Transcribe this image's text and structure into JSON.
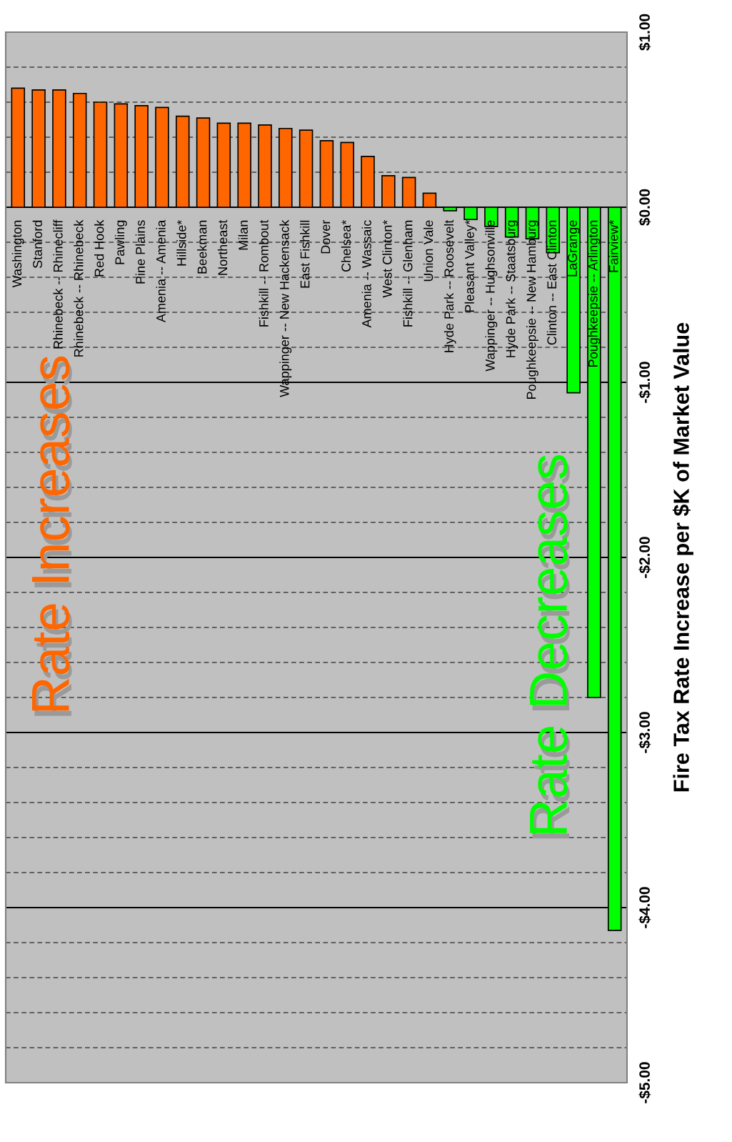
{
  "chart_data": {
    "type": "bar",
    "ylabel": "Fire Tax Rate Increase per $K of Market Value",
    "categories": [
      "Washington",
      "Stanford",
      "Rhinebeck -- Rhinecliff",
      "Rhinebeck -- Rhinebeck",
      "Red Hook",
      "Pawling",
      "Pine Plains",
      "Amenia -- Amenia",
      "Hillside*",
      "Beekman",
      "Northeast",
      "Milan",
      "Fishkill -- Rombout",
      "Wappinger -- New Hackensack",
      "East Fishkill",
      "Dover",
      "Chelsea*",
      "Amenia -- Wassaic",
      "West Clinton*",
      "Fishkill -- Glenham",
      "Union Vale",
      "Hyde Park -- Roosevelt",
      "Pleasant Valley*",
      "Wappinger -- Hughsonville",
      "Hyde Park -- Staatsburg",
      "Poughkeepsie -- New Hamburg",
      "Clinton -- East Clinton",
      "LaGrange",
      "Poughkeepsie -- Arlington",
      "Fairview*"
    ],
    "values": [
      0.68,
      0.67,
      0.67,
      0.65,
      0.6,
      0.59,
      0.58,
      0.57,
      0.52,
      0.51,
      0.48,
      0.48,
      0.47,
      0.45,
      0.44,
      0.38,
      0.37,
      0.29,
      0.18,
      0.17,
      0.08,
      -0.02,
      -0.07,
      -0.11,
      -0.17,
      -0.18,
      -0.26,
      -1.06,
      -2.8,
      -4.13
    ],
    "colors": [
      "#ff6600",
      "#ff6600",
      "#ff6600",
      "#ff6600",
      "#ff6600",
      "#ff6600",
      "#ff6600",
      "#ff6600",
      "#ff6600",
      "#ff6600",
      "#ff6600",
      "#ff6600",
      "#ff6600",
      "#ff6600",
      "#ff6600",
      "#ff6600",
      "#ff6600",
      "#ff6600",
      "#ff6600",
      "#ff6600",
      "#ff6600",
      "#00ff00",
      "#00ff00",
      "#00ff00",
      "#00ff00",
      "#00ff00",
      "#00ff00",
      "#00ff00",
      "#00ff00",
      "#00ff00"
    ],
    "ylim": [
      -5,
      1
    ],
    "yticks": [
      {
        "value": -5,
        "label": "-$5.00"
      },
      {
        "value": -4.8,
        "label": null
      },
      {
        "value": -4.6,
        "label": null
      },
      {
        "value": -4.4,
        "label": null
      },
      {
        "value": -4.2,
        "label": null
      },
      {
        "value": -4,
        "label": "-$4.00"
      },
      {
        "value": -3.8,
        "label": null
      },
      {
        "value": -3.6,
        "label": null
      },
      {
        "value": -3.4,
        "label": null
      },
      {
        "value": -3.2,
        "label": null
      },
      {
        "value": -3,
        "label": "-$3.00"
      },
      {
        "value": -2.8,
        "label": null
      },
      {
        "value": -2.6,
        "label": null
      },
      {
        "value": -2.4,
        "label": null
      },
      {
        "value": -2.2,
        "label": null
      },
      {
        "value": -2,
        "label": "-$2.00"
      },
      {
        "value": -1.8,
        "label": null
      },
      {
        "value": -1.6,
        "label": null
      },
      {
        "value": -1.4,
        "label": null
      },
      {
        "value": -1.2,
        "label": null
      },
      {
        "value": -1,
        "label": "-$1.00"
      },
      {
        "value": -0.8,
        "label": null
      },
      {
        "value": -0.6,
        "label": null
      },
      {
        "value": -0.4,
        "label": null
      },
      {
        "value": -0.2,
        "label": null
      },
      {
        "value": 0,
        "label": "$0.00"
      },
      {
        "value": 0.2,
        "label": null
      },
      {
        "value": 0.4,
        "label": null
      },
      {
        "value": 0.6,
        "label": null
      },
      {
        "value": 0.8,
        "label": null
      },
      {
        "value": 1,
        "label": "$1.00"
      }
    ],
    "grid": "y",
    "annotations": [
      "Rate Increases",
      "Rate Decreases"
    ]
  }
}
